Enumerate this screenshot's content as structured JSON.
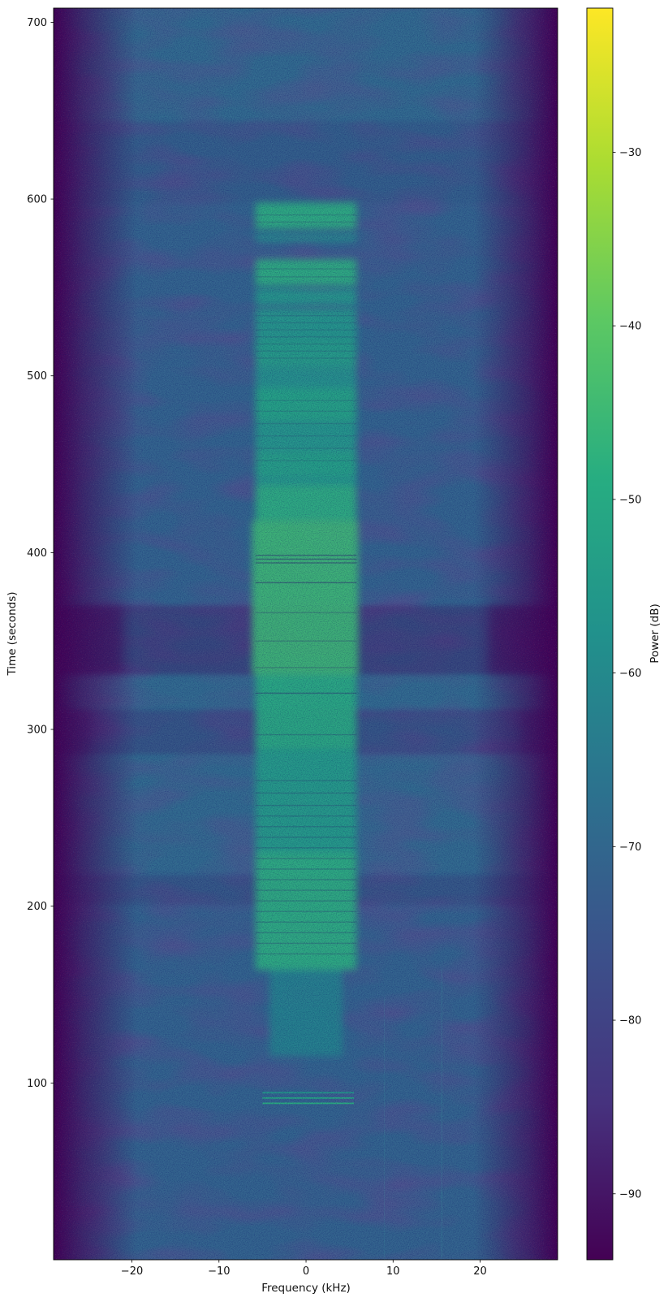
{
  "chart_data": {
    "type": "heatmap",
    "subtype": "spectrogram",
    "title": "",
    "xlabel": "Frequency (kHz)",
    "ylabel": "Time (seconds)",
    "colormap": "viridis",
    "x_range_khz": [
      -29.0,
      28.9
    ],
    "y_range_seconds": [
      0,
      708
    ],
    "x_ticks": [
      -20,
      -10,
      0,
      10,
      20
    ],
    "x_tick_labels": [
      "−20",
      "−10",
      "0",
      "10",
      "20"
    ],
    "y_ticks": [
      700,
      600,
      500,
      400,
      300,
      200,
      100
    ],
    "y_tick_labels": [
      "700",
      "600",
      "500",
      "400",
      "300",
      "200",
      "100"
    ],
    "grid": false,
    "colorbar": {
      "label": "Power (dB)",
      "position": "right",
      "range_db": [
        -93.8,
        -21.7
      ],
      "ticks": [
        -30,
        -40,
        -50,
        -60,
        -70,
        -80,
        -90
      ],
      "tick_labels": [
        "−30",
        "−40",
        "−50",
        "−60",
        "−70",
        "−80",
        "−90"
      ]
    },
    "background_power_db": -71,
    "band_edge_fade_khz": 3.0,
    "signal": {
      "center_band_khz": [
        -5.8,
        5.8
      ],
      "bursts": [
        {
          "t": [
            583,
            598
          ],
          "db": -48
        },
        {
          "t": [
            576,
            580
          ],
          "db": -58
        },
        {
          "t": [
            551,
            566
          ],
          "db": -48
        },
        {
          "t": [
            540,
            549
          ],
          "db": -55
        },
        {
          "t": [
            520,
            538
          ],
          "db": -55
        },
        {
          "t": [
            505,
            520
          ],
          "db": -53
        },
        {
          "t": [
            493,
            505
          ],
          "db": -57
        },
        {
          "t": [
            475,
            493
          ],
          "db": -51
        },
        {
          "t": [
            457,
            475
          ],
          "db": -55
        },
        {
          "t": [
            443,
            457
          ],
          "db": -52
        },
        {
          "t": [
            438,
            443
          ],
          "db": -55
        },
        {
          "t": [
            418,
            438
          ],
          "db": -48
        },
        {
          "t": [
            331,
            418
          ],
          "db": -45,
          "f": [
            -6.2,
            6.0
          ]
        },
        {
          "t": [
            289,
            331
          ],
          "db": -49
        },
        {
          "t": [
            230,
            289
          ],
          "db": -54
        },
        {
          "t": [
            164,
            230
          ],
          "db": -48
        },
        {
          "t": [
            115,
            164
          ],
          "db": -62,
          "f": [
            -4.2,
            4.2
          ]
        }
      ],
      "bright_lines": [
        {
          "t": 94.5,
          "db": -55
        },
        {
          "t": 91.5,
          "db": -50
        },
        {
          "t": 88.5,
          "db": -48
        }
      ],
      "dropout_lines": [
        [
          398.5,
          0.5
        ],
        [
          396.3,
          0.5
        ],
        [
          394.2,
          0.5
        ],
        [
          383,
          0.5
        ],
        [
          320.5,
          0.45
        ],
        [
          366,
          0.28
        ],
        [
          350,
          0.28
        ],
        [
          335,
          0.28
        ],
        [
          297,
          0.28
        ],
        [
          271,
          0.28
        ],
        [
          264,
          0.28
        ],
        [
          257,
          0.28
        ],
        [
          251,
          0.28
        ],
        [
          245,
          0.28
        ],
        [
          239,
          0.28
        ],
        [
          233,
          0.28
        ],
        [
          227,
          0.28
        ],
        [
          221,
          0.28
        ],
        [
          215,
          0.28
        ],
        [
          209,
          0.28
        ],
        [
          203,
          0.28
        ],
        [
          197,
          0.28
        ],
        [
          191,
          0.28
        ],
        [
          185,
          0.28
        ],
        [
          179,
          0.28
        ],
        [
          173,
          0.28
        ],
        [
          534,
          0.18
        ],
        [
          530,
          0.18
        ],
        [
          526,
          0.18
        ],
        [
          522,
          0.18
        ],
        [
          518,
          0.18
        ],
        [
          514,
          0.18
        ],
        [
          510,
          0.18
        ],
        [
          560.5,
          0.2
        ],
        [
          556,
          0.2
        ],
        [
          591,
          0.2
        ],
        [
          587,
          0.2
        ],
        [
          486,
          0.18
        ],
        [
          480,
          0.18
        ],
        [
          473,
          0.18
        ],
        [
          466,
          0.18
        ],
        [
          459,
          0.18
        ],
        [
          452,
          0.18
        ]
      ],
      "background_bands": [
        {
          "t": [
            644,
            708
          ],
          "delta_db": 2
        },
        {
          "t": [
            598,
            644
          ],
          "delta_db": -1
        },
        {
          "t": [
            331,
            370
          ],
          "delta_db": -6,
          "wings": 85,
          "wing_alpha": 0.4
        },
        {
          "t": [
            311,
            331
          ],
          "delta_db": 2
        },
        {
          "t": [
            286,
            311
          ],
          "delta_db": -3,
          "wings": 45,
          "wing_alpha": 0.22
        },
        {
          "t": [
            219,
            286
          ],
          "delta_db": 2
        },
        {
          "t": [
            201,
            217
          ],
          "delta_db": -2.5
        }
      ],
      "vertical_lines": [
        {
          "f_khz": 9.0,
          "t": [
            0,
            150
          ],
          "alpha": 0.1
        },
        {
          "f_khz": 15.6,
          "t": [
            0,
            165
          ],
          "alpha": 0.12
        }
      ]
    },
    "viridis_stops": [
      [
        0,
        "#440154"
      ],
      [
        0.125,
        "#46327e"
      ],
      [
        0.25,
        "#3b528b"
      ],
      [
        0.375,
        "#2c728e"
      ],
      [
        0.5,
        "#21918c"
      ],
      [
        0.625,
        "#27ad81"
      ],
      [
        0.75,
        "#5cc863"
      ],
      [
        0.875,
        "#aadc32"
      ],
      [
        1,
        "#fde725"
      ]
    ]
  }
}
